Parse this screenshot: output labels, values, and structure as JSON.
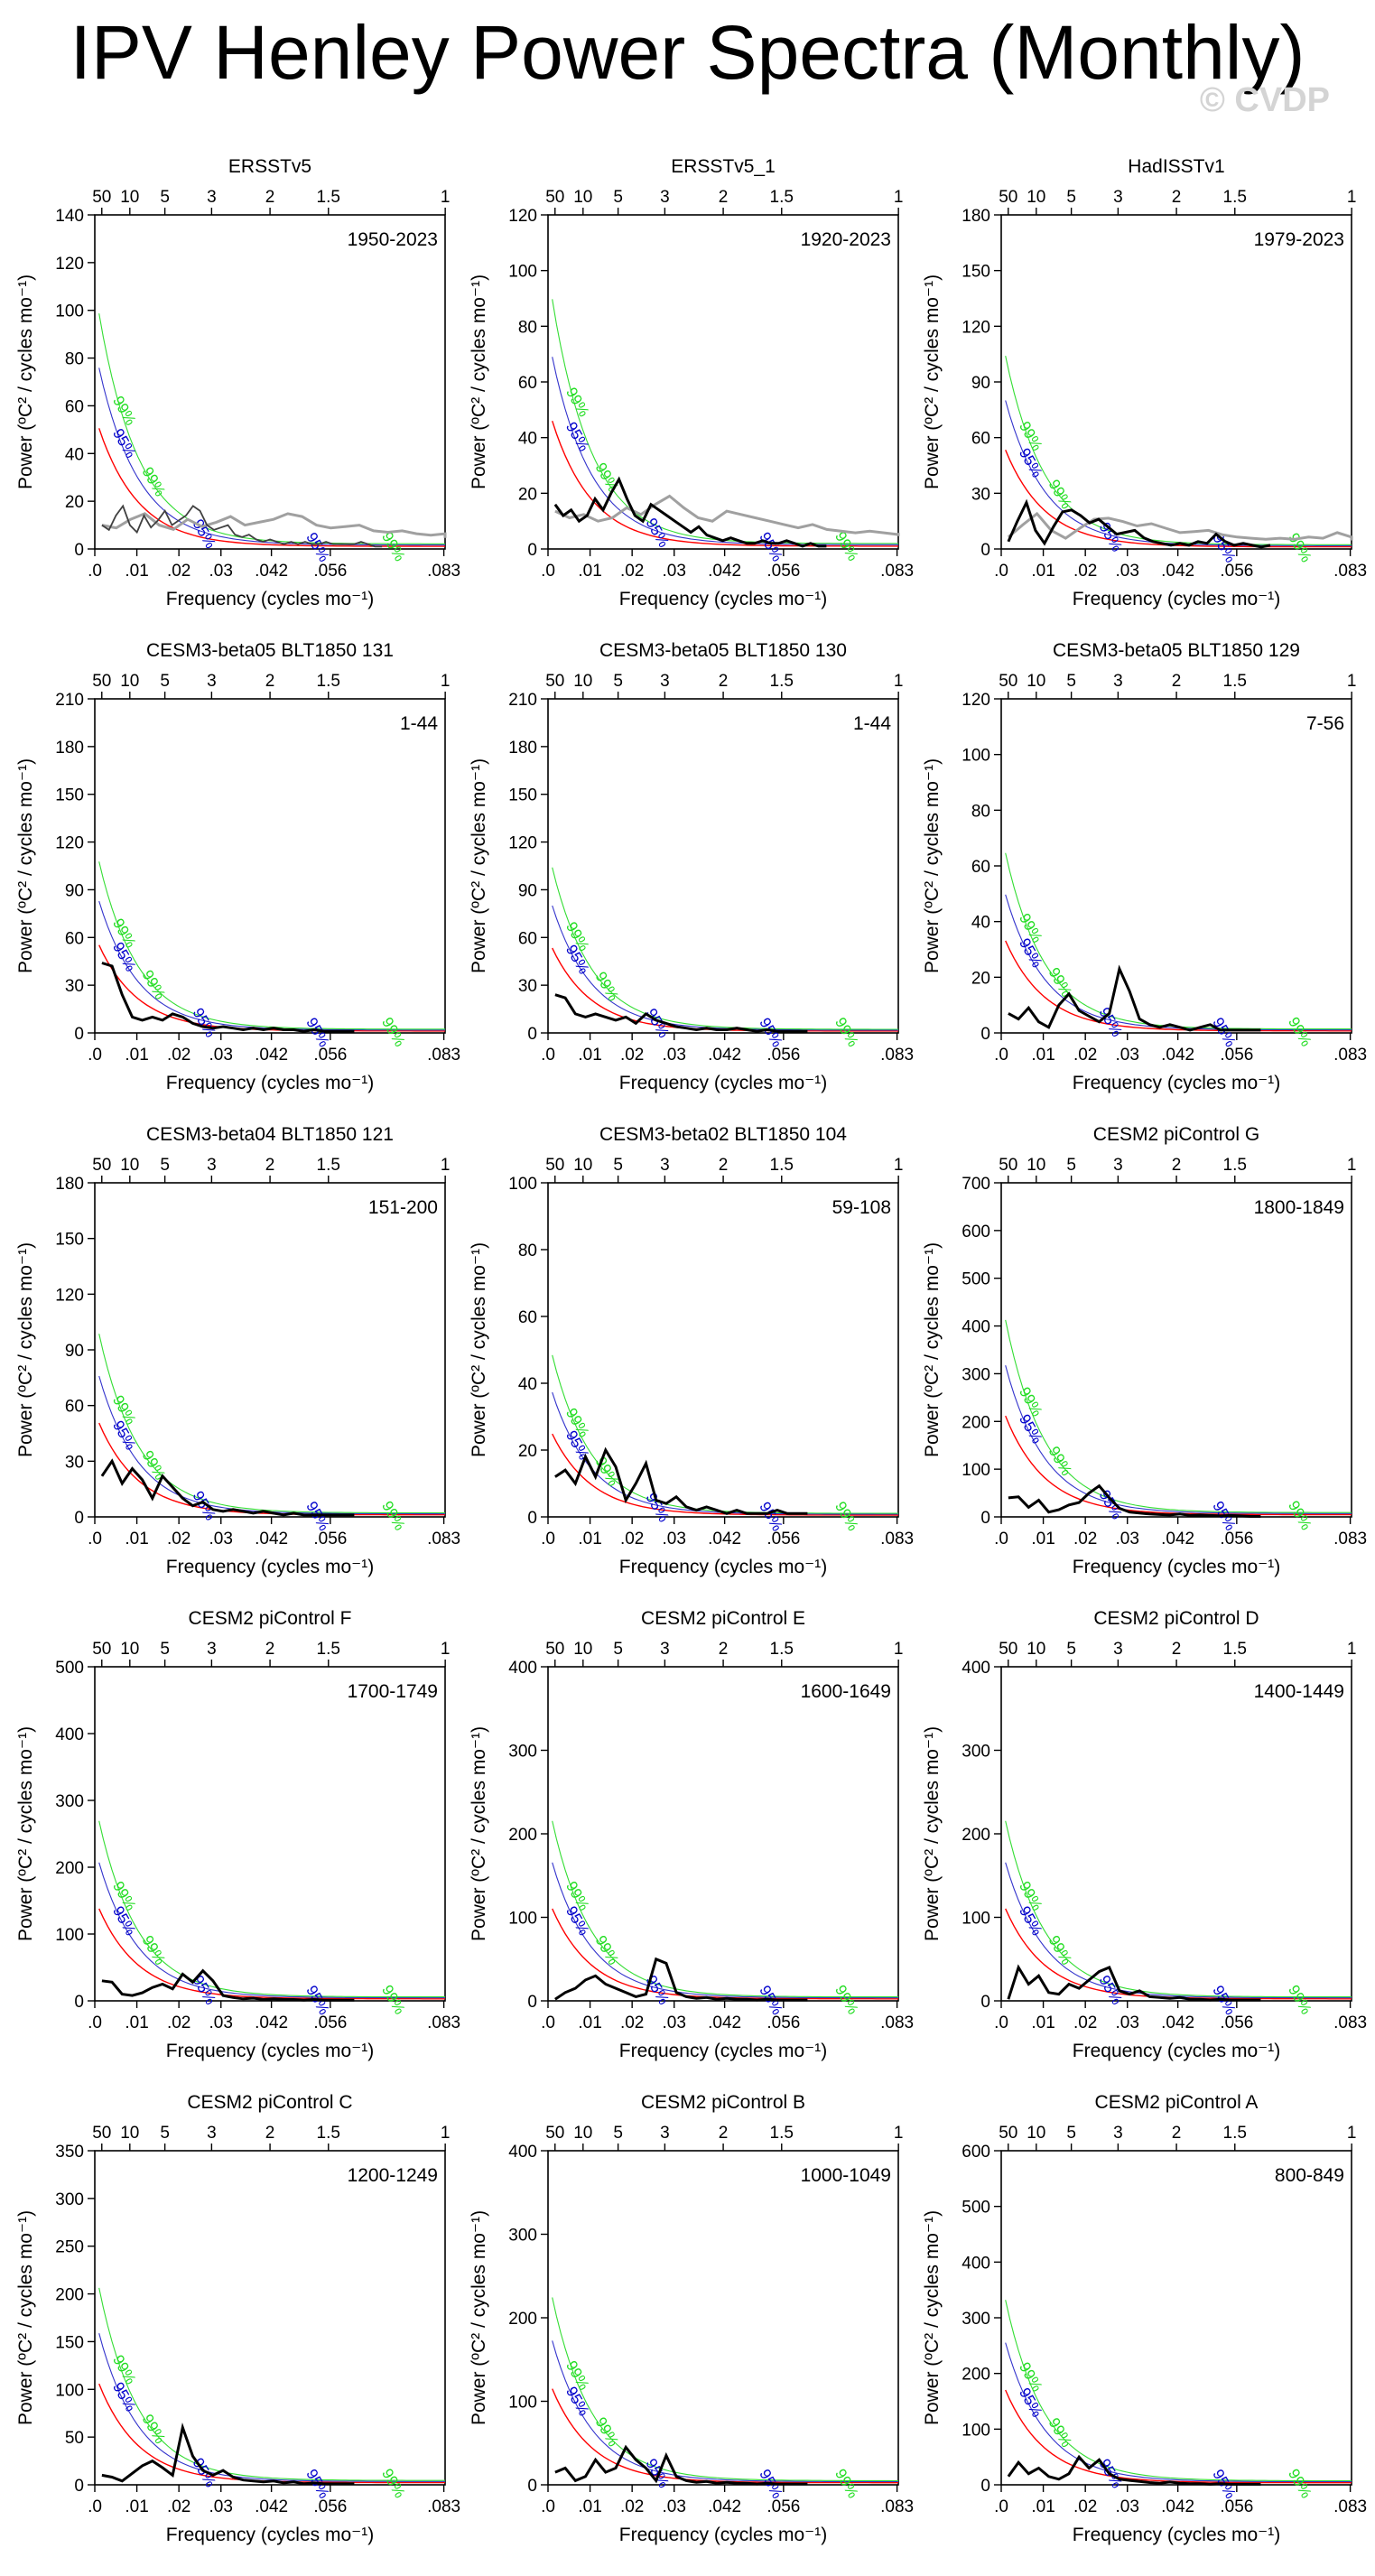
{
  "page": {
    "title": "IPV Henley Power Spectra (Monthly)",
    "watermark": "© CVDP"
  },
  "colors": {
    "spectrum": "#000000",
    "observed_gray": "#a0a0a0",
    "red_noise": "#ff0000",
    "ci95": "#3333cc",
    "ci99": "#33dd33",
    "ci95_label": "#0000cc",
    "ci99_label": "#22dd22"
  },
  "axes": {
    "xlabel": "Frequency (cycles mo⁻¹)",
    "ylabel": "Power (ºC² / cycles mo⁻¹)",
    "xlim": [
      0,
      0.0833
    ],
    "x_ticks": [
      0,
      0.01,
      0.02,
      0.03,
      0.042,
      0.056,
      0.083
    ],
    "x_tick_labels": [
      ".0",
      ".01",
      ".02",
      ".03",
      ".042",
      ".056",
      ".083"
    ],
    "period_ticks_years": [
      50,
      10,
      5,
      3,
      2,
      1.5,
      1
    ],
    "period_tick_labels": [
      "50",
      "10",
      "5",
      "3",
      "2",
      "1.5",
      "1"
    ],
    "ci_labels": {
      "ci95": "95%",
      "ci99": "99%"
    }
  },
  "chart_data": [
    {
      "type": "line",
      "title": "ERSSTv5",
      "period": "1950-2023",
      "ylim": [
        0,
        140
      ],
      "y_ticks": [
        0,
        20,
        40,
        60,
        80,
        100,
        120,
        140
      ],
      "grey": true,
      "red_start": 55,
      "spec_color": "#404040",
      "spectrum": [
        10,
        8,
        14,
        18,
        10,
        7,
        14,
        9,
        12,
        16,
        10,
        12,
        14,
        18,
        16,
        10,
        8,
        9,
        10,
        6,
        5,
        6,
        4,
        3,
        4,
        3,
        2,
        3,
        2,
        3,
        2,
        2,
        3,
        2,
        2,
        2,
        2,
        3,
        2,
        1,
        1
      ]
    },
    {
      "type": "line",
      "title": "ERSSTv5_1",
      "period": "1920-2023",
      "ylim": [
        0,
        120
      ],
      "y_ticks": [
        0,
        20,
        40,
        60,
        80,
        100,
        120
      ],
      "grey": true,
      "red_start": 50,
      "spectrum": [
        16,
        12,
        14,
        10,
        12,
        18,
        14,
        20,
        25,
        18,
        12,
        10,
        16,
        14,
        12,
        10,
        8,
        6,
        8,
        5,
        4,
        3,
        4,
        3,
        2,
        2,
        3,
        2,
        2,
        3,
        2,
        1,
        2,
        1,
        1
      ]
    },
    {
      "type": "line",
      "title": "HadISSTv1",
      "period": "1979-2023",
      "ylim": [
        0,
        180
      ],
      "y_ticks": [
        0,
        30,
        60,
        90,
        120,
        150,
        180
      ],
      "grey": true,
      "red_start": 58,
      "spectrum": [
        4,
        15,
        25,
        10,
        3,
        12,
        20,
        21,
        18,
        14,
        16,
        12,
        8,
        9,
        10,
        6,
        4,
        3,
        2,
        3,
        2,
        4,
        3,
        8,
        4,
        2,
        3,
        2,
        1,
        2
      ]
    },
    {
      "type": "line",
      "title": "CESM3-beta05 BLT1850 131",
      "period": "1-44",
      "ylim": [
        0,
        210
      ],
      "y_ticks": [
        0,
        30,
        60,
        90,
        120,
        150,
        180,
        210
      ],
      "red_start": 60,
      "spectrum": [
        44,
        42,
        24,
        10,
        8,
        10,
        8,
        12,
        10,
        6,
        4,
        3,
        4,
        3,
        2,
        3,
        2,
        3,
        2,
        2,
        1,
        2,
        1,
        1,
        1,
        1
      ]
    },
    {
      "type": "line",
      "title": "CESM3-beta05 BLT1850 130",
      "period": "1-44",
      "ylim": [
        0,
        210
      ],
      "y_ticks": [
        0,
        30,
        60,
        90,
        120,
        150,
        180,
        210
      ],
      "red_start": 58,
      "spectrum": [
        24,
        22,
        12,
        10,
        12,
        10,
        8,
        10,
        6,
        12,
        8,
        6,
        4,
        3,
        2,
        3,
        2,
        2,
        3,
        2,
        1,
        2,
        1,
        1,
        1,
        1
      ]
    },
    {
      "type": "line",
      "title": "CESM3-beta05 BLT1850 129",
      "period": "7-56",
      "ylim": [
        0,
        120
      ],
      "y_ticks": [
        0,
        20,
        40,
        60,
        80,
        100,
        120
      ],
      "red_start": 36,
      "spectrum": [
        7,
        5,
        9,
        4,
        2,
        10,
        14,
        8,
        6,
        4,
        7,
        23,
        15,
        5,
        3,
        2,
        3,
        2,
        1,
        2,
        3,
        1,
        1,
        1,
        1,
        1
      ]
    },
    {
      "type": "line",
      "title": "CESM3-beta04 BLT1850 121",
      "period": "151-200",
      "ylim": [
        0,
        180
      ],
      "y_ticks": [
        0,
        30,
        60,
        90,
        120,
        150,
        180
      ],
      "red_start": 55,
      "spectrum": [
        22,
        30,
        18,
        26,
        20,
        10,
        22,
        16,
        10,
        6,
        8,
        4,
        3,
        4,
        3,
        2,
        3,
        2,
        1,
        2,
        1,
        1,
        1,
        1,
        1,
        1
      ]
    },
    {
      "type": "line",
      "title": "CESM3-beta02 BLT1850 104",
      "period": "59-108",
      "ylim": [
        0,
        100
      ],
      "y_ticks": [
        0,
        20,
        40,
        60,
        80,
        100
      ],
      "red_start": 27,
      "spectrum": [
        12,
        14,
        10,
        18,
        12,
        20,
        15,
        5,
        10,
        16,
        5,
        4,
        6,
        3,
        2,
        3,
        2,
        1,
        2,
        1,
        1,
        1,
        2,
        1,
        1,
        1
      ]
    },
    {
      "type": "line",
      "title": "CESM2 piControl G",
      "period": "1800-1849",
      "ylim": [
        0,
        700
      ],
      "y_ticks": [
        0,
        100,
        200,
        300,
        400,
        500,
        600,
        700
      ],
      "red_start": 230,
      "spectrum": [
        40,
        42,
        20,
        35,
        10,
        15,
        25,
        30,
        50,
        65,
        40,
        18,
        10,
        8,
        6,
        5,
        4,
        6,
        3,
        4,
        3,
        2,
        3,
        2,
        1,
        1
      ]
    },
    {
      "type": "line",
      "title": "CESM2 piControl F",
      "period": "1700-1749",
      "ylim": [
        0,
        500
      ],
      "y_ticks": [
        0,
        100,
        200,
        300,
        400,
        500
      ],
      "red_start": 150,
      "spectrum": [
        30,
        28,
        10,
        8,
        12,
        20,
        25,
        18,
        40,
        28,
        45,
        30,
        8,
        5,
        3,
        4,
        2,
        3,
        2,
        2,
        1,
        2,
        1,
        1,
        1,
        1
      ]
    },
    {
      "type": "line",
      "title": "CESM2 piControl E",
      "period": "1600-1649",
      "ylim": [
        0,
        400
      ],
      "y_ticks": [
        0,
        100,
        200,
        300,
        400
      ],
      "red_start": 120,
      "spectrum": [
        2,
        10,
        15,
        25,
        30,
        20,
        15,
        10,
        5,
        8,
        50,
        45,
        10,
        5,
        3,
        4,
        2,
        3,
        2,
        2,
        1,
        2,
        1,
        1,
        1,
        1
      ]
    },
    {
      "type": "line",
      "title": "CESM2 piControl D",
      "period": "1400-1449",
      "ylim": [
        0,
        400
      ],
      "y_ticks": [
        0,
        100,
        200,
        300,
        400
      ],
      "red_start": 120,
      "spectrum": [
        2,
        40,
        20,
        30,
        10,
        8,
        20,
        15,
        25,
        35,
        40,
        12,
        8,
        12,
        5,
        4,
        3,
        4,
        2,
        2,
        1,
        2,
        1,
        1,
        1,
        1
      ]
    },
    {
      "type": "line",
      "title": "CESM2 piControl C",
      "period": "1200-1249",
      "ylim": [
        0,
        350
      ],
      "y_ticks": [
        0,
        50,
        100,
        150,
        200,
        250,
        300,
        350
      ],
      "red_start": 115,
      "spectrum": [
        10,
        8,
        4,
        12,
        20,
        25,
        18,
        10,
        60,
        30,
        15,
        10,
        15,
        8,
        5,
        4,
        3,
        4,
        2,
        3,
        1,
        2,
        1,
        1,
        1,
        1
      ]
    },
    {
      "type": "line",
      "title": "CESM2 piControl B",
      "period": "1000-1049",
      "ylim": [
        0,
        400
      ],
      "y_ticks": [
        0,
        100,
        200,
        300,
        400
      ],
      "red_start": 125,
      "spectrum": [
        15,
        20,
        5,
        10,
        30,
        15,
        20,
        45,
        30,
        20,
        5,
        35,
        10,
        5,
        3,
        4,
        2,
        3,
        2,
        2,
        1,
        2,
        1,
        1,
        1,
        1
      ]
    },
    {
      "type": "line",
      "title": "CESM2 piControl A",
      "period": "800-849",
      "ylim": [
        0,
        600
      ],
      "y_ticks": [
        0,
        100,
        200,
        300,
        400,
        500,
        600
      ],
      "red_start": 185,
      "spectrum": [
        15,
        40,
        20,
        30,
        15,
        10,
        20,
        50,
        30,
        45,
        20,
        10,
        8,
        6,
        4,
        3,
        5,
        3,
        2,
        2,
        1,
        2,
        1,
        1,
        1,
        1
      ]
    }
  ]
}
